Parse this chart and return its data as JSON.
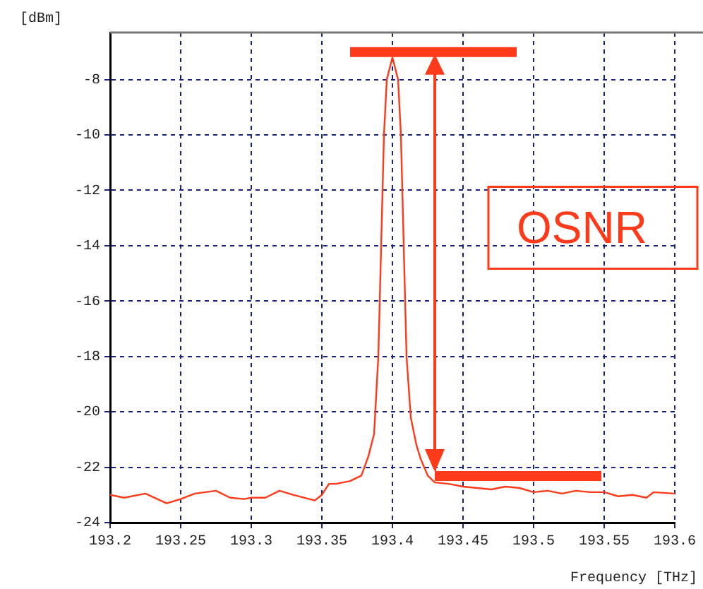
{
  "chart_data": {
    "type": "line",
    "xlabel": "Frequency [THz]",
    "ylabel": "[dBm]",
    "annotations": [
      "OSNR"
    ],
    "x": [
      193.2,
      193.21,
      193.225,
      193.24,
      193.25,
      193.26,
      193.275,
      193.285,
      193.295,
      193.3,
      193.31,
      193.32,
      193.33,
      193.345,
      193.35,
      193.355,
      193.36,
      193.37,
      193.378,
      193.383,
      193.387,
      193.39,
      193.392,
      193.394,
      193.396,
      193.4,
      193.404,
      193.406,
      193.408,
      193.41,
      193.413,
      193.417,
      193.42,
      193.425,
      193.43,
      193.44,
      193.45,
      193.46,
      193.47,
      193.48,
      193.49,
      193.5,
      193.51,
      193.52,
      193.53,
      193.54,
      193.55,
      193.56,
      193.57,
      193.58,
      193.585,
      193.6
    ],
    "series": [
      {
        "color": "#ff3a1a",
        "values": [
          -23.0,
          -23.1,
          -22.95,
          -23.3,
          -23.15,
          -22.95,
          -22.85,
          -23.1,
          -23.15,
          -23.1,
          -23.1,
          -22.85,
          -23.0,
          -23.2,
          -23.0,
          -22.6,
          -22.6,
          -22.5,
          -22.3,
          -21.6,
          -20.8,
          -18,
          -14,
          -10,
          -8,
          -7.2,
          -8,
          -10,
          -14,
          -18,
          -20.2,
          -21.2,
          -21.7,
          -22.3,
          -22.55,
          -22.6,
          -22.7,
          -22.75,
          -22.8,
          -22.7,
          -22.75,
          -22.9,
          -22.85,
          -22.95,
          -22.85,
          -22.9,
          -22.9,
          -23.05,
          -23.0,
          -23.1,
          -22.9,
          -22.95
        ]
      }
    ],
    "xlim": [
      193.2,
      193.6
    ],
    "xticks": [
      193.2,
      193.25,
      193.3,
      193.35,
      193.4,
      193.45,
      193.5,
      193.55,
      193.6
    ],
    "ylim": [
      -24,
      -6.3
    ],
    "yticks": [
      -24,
      -22,
      -20,
      -18,
      -16,
      -14,
      -12,
      -10,
      -8
    ],
    "grid": true,
    "legend": false,
    "marker": "none",
    "line_style": "solid"
  }
}
